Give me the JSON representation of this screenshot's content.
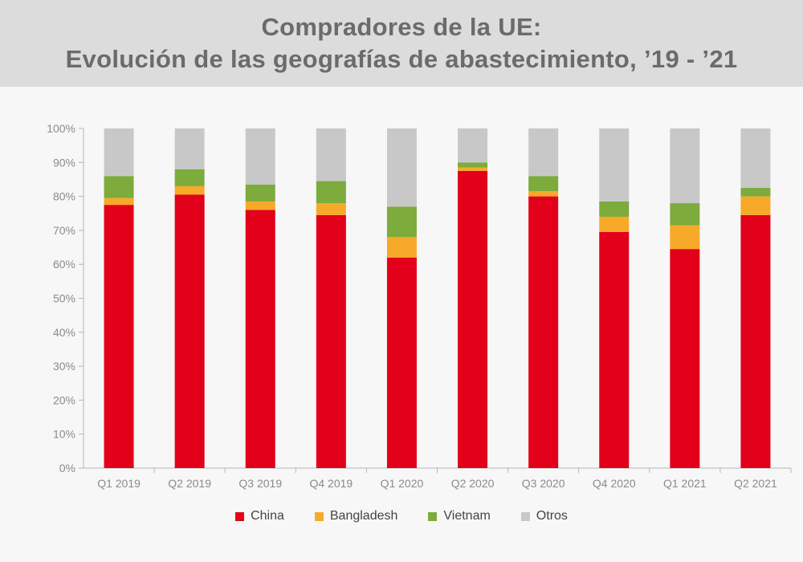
{
  "header": {
    "title_line1": "Compradores de la UE:",
    "title_line2": "Evolución de las geografías de abastecimiento, ’19 - ’21"
  },
  "chart_data": {
    "type": "bar",
    "stacked": true,
    "categories": [
      "Q1 2019",
      "Q2 2019",
      "Q3 2019",
      "Q4 2019",
      "Q1 2020",
      "Q2 2020",
      "Q3 2020",
      "Q4 2020",
      "Q1 2021",
      "Q2 2021"
    ],
    "series": [
      {
        "name": "China",
        "color": "#e2001a",
        "values": [
          77.5,
          80.5,
          76,
          74.5,
          62,
          87.5,
          80,
          69.5,
          64.5,
          74.5
        ]
      },
      {
        "name": "Bangladesh",
        "color": "#f7a929",
        "values": [
          2,
          2.5,
          2.5,
          3.5,
          6,
          1,
          1.5,
          4.5,
          7,
          5.5
        ]
      },
      {
        "name": "Vietnam",
        "color": "#7dab3c",
        "values": [
          6.5,
          5,
          5,
          6.5,
          9,
          1.5,
          4.5,
          4.5,
          6.5,
          2.5
        ]
      },
      {
        "name": "Otros",
        "color": "#c8c8c8",
        "values": [
          14,
          12,
          16.5,
          15.5,
          23,
          10,
          14,
          21.5,
          22,
          17.5
        ]
      }
    ],
    "y_ticks": [
      "0%",
      "10%",
      "20%",
      "30%",
      "40%",
      "50%",
      "60%",
      "70%",
      "80%",
      "90%",
      "100%"
    ],
    "ylim": [
      0,
      100
    ],
    "grid": false,
    "legend_position": "bottom"
  }
}
